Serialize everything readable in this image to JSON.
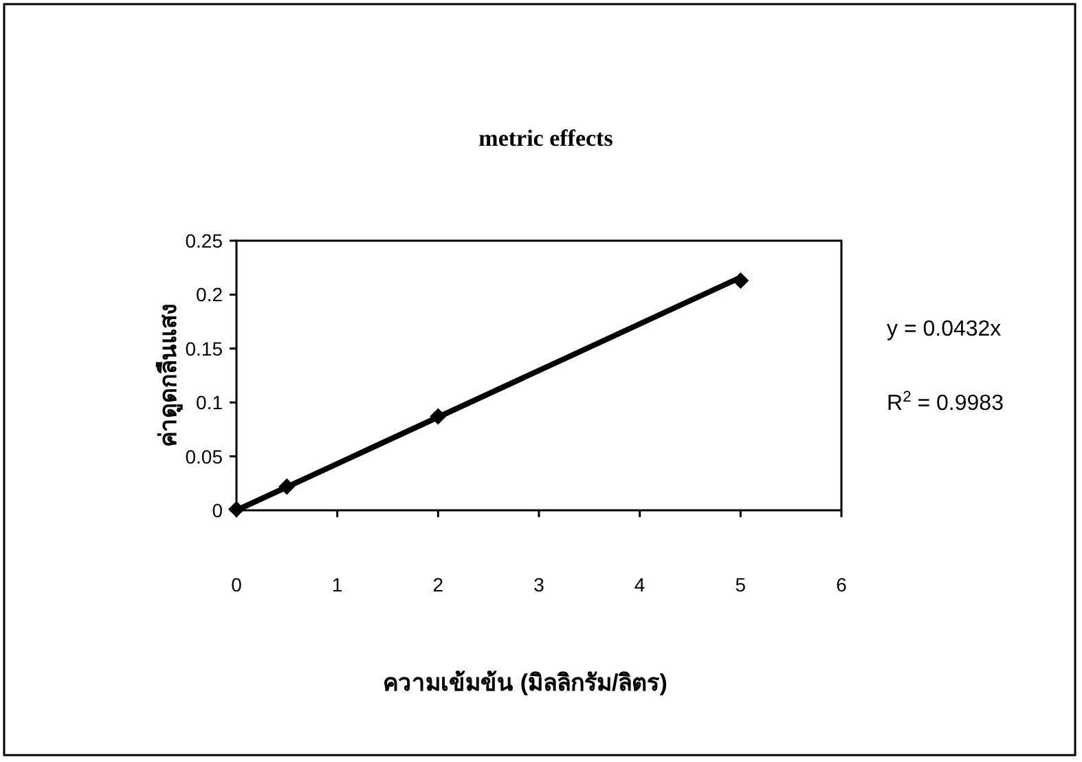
{
  "chart_data": {
    "type": "scatter",
    "title": "metric effects",
    "xlabel": "ความเข้มข้น (มิลลิกรัม/ลิตร)",
    "ylabel": "ค่าดูดกลืนแสง",
    "xlim": [
      0,
      6
    ],
    "xticks": [
      0,
      1,
      2,
      3,
      4,
      5,
      6
    ],
    "ylim": [
      0,
      0.25
    ],
    "yticks": [
      0,
      0.05,
      0.1,
      0.15,
      0.2,
      0.25
    ],
    "grid": false,
    "series": [
      {
        "marker": "diamond",
        "color": "#000000",
        "x": [
          0,
          0.5,
          2,
          5
        ],
        "values": [
          0.001,
          0.022,
          0.087,
          0.213
        ]
      },
      {
        "type": "line",
        "marker": "none",
        "color": "#000000",
        "x": [
          0,
          5
        ],
        "values": [
          0,
          0.216
        ]
      }
    ],
    "annotations": [
      "y = 0.0432x",
      "R$^{2}$ = 0.9983"
    ]
  }
}
